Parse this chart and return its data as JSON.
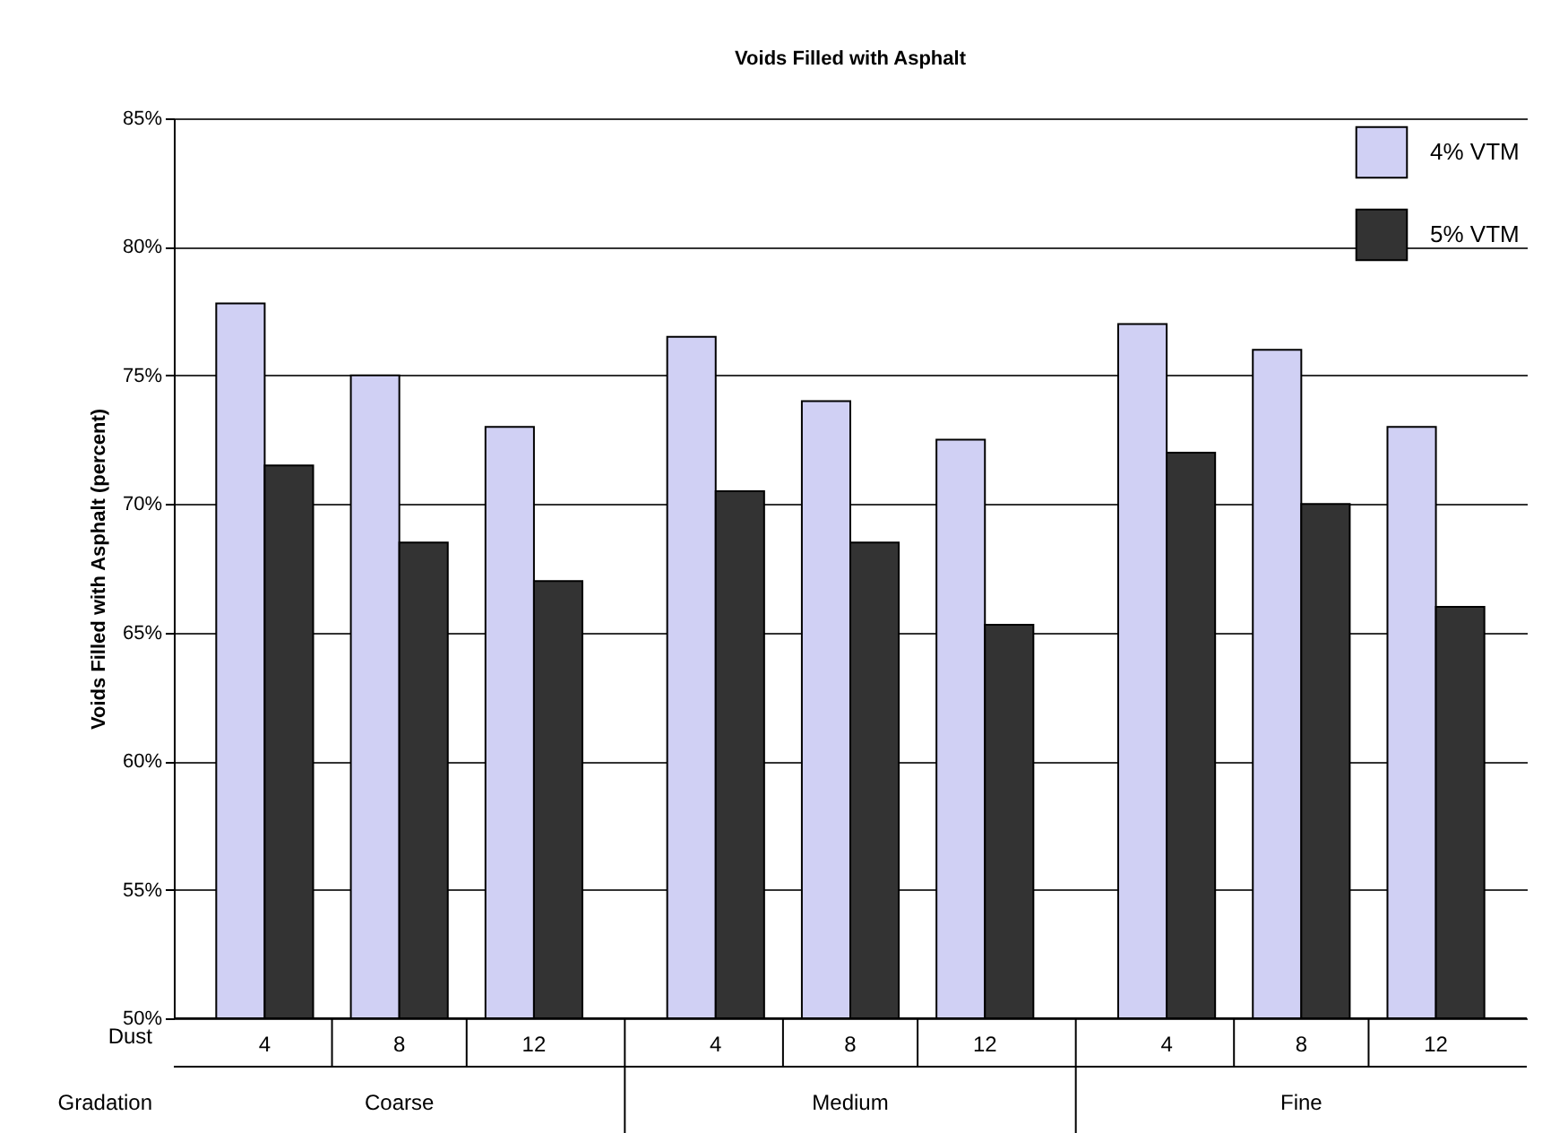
{
  "chart_data": {
    "type": "bar",
    "title": "Voids Filled with Asphalt",
    "ylabel": "Voids Filled with Asphalt (percent)",
    "categories": [
      "4",
      "8",
      "12",
      "4",
      "8",
      "12",
      "4",
      "8",
      "12"
    ],
    "annotations": [
      "Dust",
      "Gradation",
      "Coarse",
      "Medium",
      "Fine"
    ],
    "series": [
      {
        "name": "4% VTM",
        "color": "#d0d0f4",
        "values": [
          77.8,
          75.0,
          73.0,
          76.5,
          74.0,
          72.5,
          77.0,
          76.0,
          73.0
        ]
      },
      {
        "name": "5% VTM",
        "color": "#333333",
        "values": [
          71.5,
          68.5,
          67.0,
          70.5,
          68.5,
          65.3,
          72.0,
          70.0,
          66.0
        ]
      }
    ],
    "ylim": [
      50,
      85
    ],
    "yticks": [
      {
        "value": 50,
        "label": "50%"
      },
      {
        "value": 55,
        "label": "55%"
      },
      {
        "value": 60,
        "label": "60%"
      },
      {
        "value": 65,
        "label": "65%"
      },
      {
        "value": 70,
        "label": "70%"
      },
      {
        "value": 75,
        "label": "75%"
      },
      {
        "value": 80,
        "label": "80%"
      },
      {
        "value": 85,
        "label": "85%"
      }
    ],
    "grid": "y",
    "legend": "top right"
  }
}
